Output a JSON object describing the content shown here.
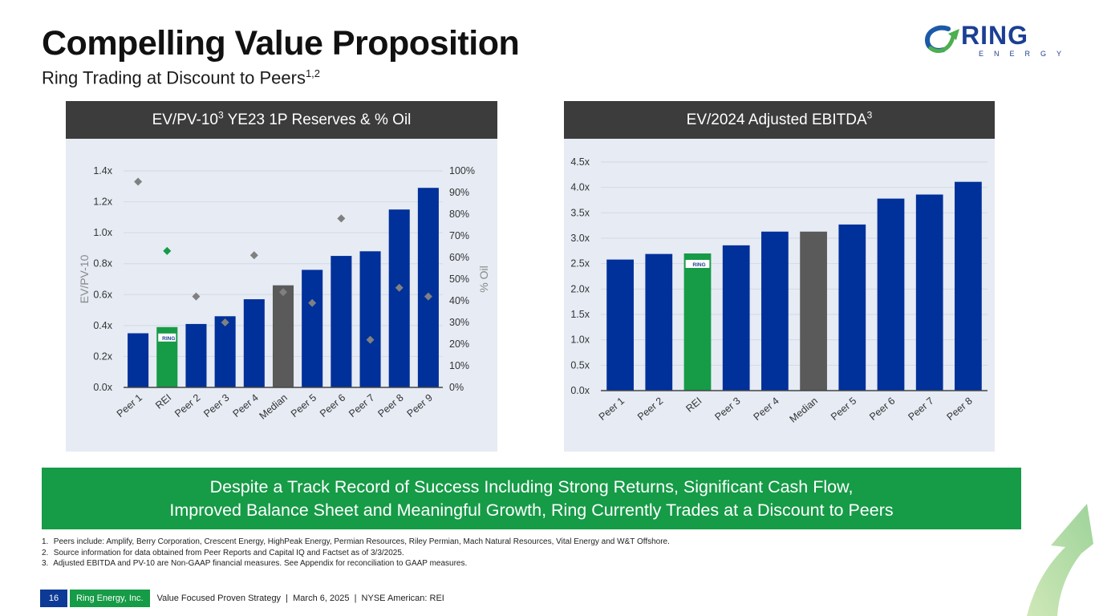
{
  "header": {
    "title": "Compelling Value Proposition",
    "subtitle": "Ring Trading at Discount to Peers",
    "subtitle_sup": "1,2"
  },
  "logo": {
    "word": "RING",
    "sub": "ENERGY",
    "icon": "ring-arrow-logo-icon"
  },
  "left_panel": {
    "title": "EV/PV-10",
    "title_sup": "3",
    "title_rest": " YE23 1P Reserves & % Oil"
  },
  "right_panel": {
    "title": "EV/2024 Adjusted EBITDA",
    "title_sup": "3"
  },
  "colors": {
    "peer": "#00309a",
    "rei": "#169b47",
    "median": "#5a5a5a",
    "diamond": "#808080",
    "rei_diamond": "#169b47",
    "panel_bg": "#e6ebf4",
    "header_bg": "#3c3c3c"
  },
  "chart_data": [
    {
      "type": "bar",
      "title": "EV/PV-10 YE23 1P Reserves & % Oil",
      "categories": [
        "Peer 1",
        "REI",
        "Peer 2",
        "Peer 3",
        "Peer 4",
        "Median",
        "Peer 5",
        "Peer 6",
        "Peer 7",
        "Peer 8",
        "Peer 9"
      ],
      "series": [
        {
          "name": "EV/PV-10",
          "kind": "bar",
          "axis": "left",
          "values": [
            0.35,
            0.39,
            0.41,
            0.46,
            0.57,
            0.66,
            0.76,
            0.85,
            0.88,
            1.15,
            1.29
          ]
        },
        {
          "name": "% Oil",
          "kind": "diamond",
          "axis": "right",
          "values": [
            95,
            63,
            42,
            30,
            61,
            44,
            39,
            78,
            22,
            46,
            42
          ]
        }
      ],
      "ylabel": "EV/PV-10",
      "y2label": "% Oil",
      "ylim": [
        0,
        1.4
      ],
      "y2lim": [
        0,
        100
      ],
      "yticks": [
        "0.0x",
        "0.2x",
        "0.4x",
        "0.6x",
        "0.8x",
        "1.0x",
        "1.2x",
        "1.4x"
      ],
      "y2ticks": [
        "0%",
        "10%",
        "20%",
        "30%",
        "40%",
        "50%",
        "60%",
        "70%",
        "80%",
        "90%",
        "100%"
      ],
      "highlight": {
        "REI": "rei",
        "Median": "median"
      },
      "grid": true
    },
    {
      "type": "bar",
      "title": "EV/2024 Adjusted EBITDA",
      "categories": [
        "Peer 1",
        "Peer 2",
        "REI",
        "Peer 3",
        "Peer 4",
        "Median",
        "Peer 5",
        "Peer 6",
        "Peer 7",
        "Peer 8"
      ],
      "series": [
        {
          "name": "EV/2024 Adjusted EBITDA",
          "kind": "bar",
          "axis": "left",
          "values": [
            2.58,
            2.69,
            2.7,
            2.86,
            3.13,
            3.13,
            3.27,
            3.78,
            3.86,
            4.11
          ]
        }
      ],
      "ylim": [
        0,
        4.5
      ],
      "yticks": [
        "0.0x",
        "0.5x",
        "1.0x",
        "1.5x",
        "2.0x",
        "2.5x",
        "3.0x",
        "3.5x",
        "4.0x",
        "4.5x"
      ],
      "highlight": {
        "REI": "rei",
        "Median": "median"
      },
      "grid": true
    }
  ],
  "banner": {
    "line1": "Despite a Track Record of Success Including Strong Returns, Significant Cash Flow,",
    "line2": "Improved Balance Sheet and Meaningful Growth, Ring Currently Trades at a Discount to Peers"
  },
  "footnotes": [
    {
      "num": "1.",
      "text": "Peers include: Amplify, Berry Corporation, Crescent Energy, HighPeak Energy, Permian Resources, Riley Permian, Mach Natural Resources, Vital Energy and W&T Offshore."
    },
    {
      "num": "2.",
      "text": "Source information for data obtained from Peer Reports and Capital IQ and Factset as of 3/3/2025."
    },
    {
      "num": "3.",
      "text": "Adjusted EBITDA and PV-10 are Non-GAAP financial measures. See Appendix for reconciliation to GAAP measures."
    }
  ],
  "footer": {
    "page": "16",
    "company": "Ring Energy, Inc.",
    "text": "Value Focused Proven Strategy  |  March 6, 2025  |  NYSE American: REI"
  }
}
